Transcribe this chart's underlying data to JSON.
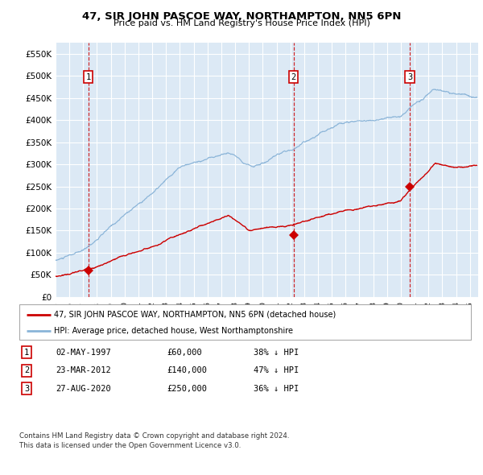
{
  "title": "47, SIR JOHN PASCOE WAY, NORTHAMPTON, NN5 6PN",
  "subtitle": "Price paid vs. HM Land Registry's House Price Index (HPI)",
  "background_color": "#ffffff",
  "plot_bg_color": "#dce9f5",
  "grid_color": "#ffffff",
  "hpi_color": "#8ab4d8",
  "price_color": "#cc0000",
  "vline_color": "#cc0000",
  "ylim": [
    0,
    575000
  ],
  "yticks": [
    0,
    50000,
    100000,
    150000,
    200000,
    250000,
    300000,
    350000,
    400000,
    450000,
    500000,
    550000
  ],
  "x_start_year": 1995,
  "x_end_year": 2025,
  "legend_line1": "47, SIR JOHN PASCOE WAY, NORTHAMPTON, NN5 6PN (detached house)",
  "legend_line2": "HPI: Average price, detached house, West Northamptonshire",
  "sale1_date": 1997.37,
  "sale1_price": 60000,
  "sale1_label": "1",
  "sale1_text": "02-MAY-1997",
  "sale1_amount": "£60,000",
  "sale1_hpi": "38% ↓ HPI",
  "sale2_date": 2012.23,
  "sale2_price": 140000,
  "sale2_label": "2",
  "sale2_text": "23-MAR-2012",
  "sale2_amount": "£140,000",
  "sale2_hpi": "47% ↓ HPI",
  "sale3_date": 2020.65,
  "sale3_price": 250000,
  "sale3_label": "3",
  "sale3_text": "27-AUG-2020",
  "sale3_amount": "£250,000",
  "sale3_hpi": "36% ↓ HPI",
  "footer": "Contains HM Land Registry data © Crown copyright and database right 2024.\nThis data is licensed under the Open Government Licence v3.0."
}
